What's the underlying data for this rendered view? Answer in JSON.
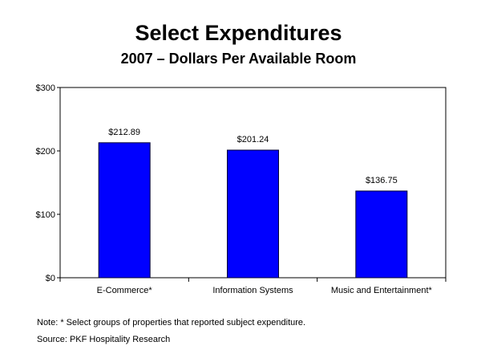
{
  "chart_data": {
    "type": "bar",
    "title": "Select Expenditures",
    "subtitle": "2007 – Dollars Per Available Room",
    "categories": [
      "E-Commerce*",
      "Information Systems",
      "Music and Entertainment*"
    ],
    "values": [
      212.89,
      201.24,
      136.75
    ],
    "value_labels": [
      "$212.89",
      "$201.24",
      "$136.75"
    ],
    "ylim": [
      0,
      300
    ],
    "y_ticks": [
      0,
      100,
      200,
      300
    ],
    "y_tick_labels": [
      "$0",
      "$100",
      "$200",
      "$300"
    ],
    "bar_color": "#0000ff",
    "bar_edge_color": "#000033",
    "grid": false,
    "legend": "none"
  },
  "notes": {
    "note": "Note: * Select groups of properties that reported subject expenditure.",
    "source": "Source: PKF Hospitality Research"
  }
}
